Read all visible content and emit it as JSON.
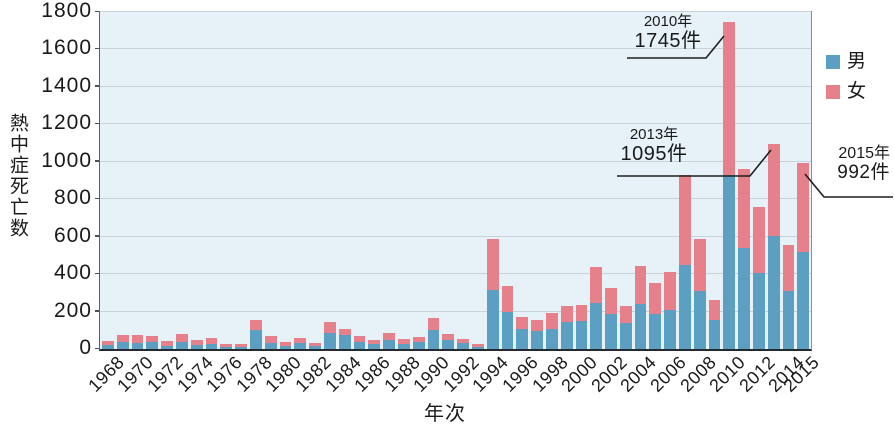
{
  "legend": {
    "items": [
      {
        "label": "男",
        "color": "#5ba0c2"
      },
      {
        "label": "女",
        "color": "#e6818c"
      }
    ]
  },
  "annotations": [
    {
      "year_label": "2010年",
      "value_label": "1745件",
      "target_year": 2010
    },
    {
      "year_label": "2013年",
      "value_label": "1095件",
      "target_year": 2013
    },
    {
      "year_label": "2015年",
      "value_label": "992件",
      "target_year": 2015
    }
  ],
  "chart_data": {
    "type": "bar",
    "stacked": true,
    "title": "",
    "xlabel": "年次",
    "ylabel": "熱中症死亡数",
    "ylim": [
      0,
      1800
    ],
    "ytick_step": 200,
    "grid": true,
    "legend_position": "right-outside",
    "plot_background": "#e6f2f7",
    "categories": [
      1968,
      1969,
      1970,
      1971,
      1972,
      1973,
      1974,
      1975,
      1976,
      1977,
      1978,
      1979,
      1980,
      1981,
      1982,
      1983,
      1984,
      1985,
      1986,
      1987,
      1988,
      1989,
      1990,
      1991,
      1992,
      1993,
      1994,
      1995,
      1996,
      1997,
      1998,
      1999,
      2000,
      2001,
      2002,
      2003,
      2004,
      2005,
      2006,
      2007,
      2008,
      2009,
      2010,
      2011,
      2012,
      2013,
      2014,
      2015
    ],
    "x_tick_labels": [
      "1968",
      "1970",
      "1972",
      "1974",
      "1976",
      "1978",
      "1980",
      "1982",
      "1984",
      "1986",
      "1988",
      "1990",
      "1992",
      "1994",
      "1996",
      "1998",
      "2000",
      "2002",
      "2004",
      "2006",
      "2008",
      "2010",
      "2012",
      "2014",
      "2015"
    ],
    "series": [
      {
        "name": "男",
        "color": "#5ba0c2",
        "values": [
          22,
          40,
          31,
          38,
          18,
          40,
          23,
          29,
          11,
          9,
          99,
          34,
          18,
          32,
          14,
          85,
          73,
          35,
          27,
          50,
          28,
          39,
          103,
          46,
          32,
          11,
          313,
          196,
          108,
          95,
          105,
          142,
          151,
          246,
          185,
          139,
          240,
          187,
          210,
          450,
          310,
          155,
          930,
          540,
          405,
          605,
          312,
          516
        ]
      },
      {
        "name": "女",
        "color": "#e6818c",
        "values": [
          23,
          37,
          46,
          32,
          27,
          41,
          24,
          29,
          18,
          16,
          58,
          34,
          17,
          26,
          18,
          57,
          35,
          32,
          19,
          35,
          25,
          25,
          62,
          34,
          21,
          16,
          276,
          139,
          62,
          60,
          85,
          86,
          82,
          190,
          143,
          93,
          202,
          166,
          201,
          480,
          275,
          105,
          815,
          420,
          355,
          490,
          245,
          476
        ]
      }
    ],
    "totals": [
      45,
      77,
      77,
      70,
      45,
      81,
      47,
      58,
      29,
      25,
      157,
      68,
      35,
      58,
      32,
      142,
      108,
      67,
      46,
      85,
      53,
      64,
      165,
      80,
      53,
      27,
      589,
      335,
      170,
      155,
      190,
      228,
      233,
      436,
      328,
      232,
      442,
      353,
      411,
      930,
      585,
      260,
      1745,
      960,
      760,
      1095,
      557,
      992
    ]
  }
}
